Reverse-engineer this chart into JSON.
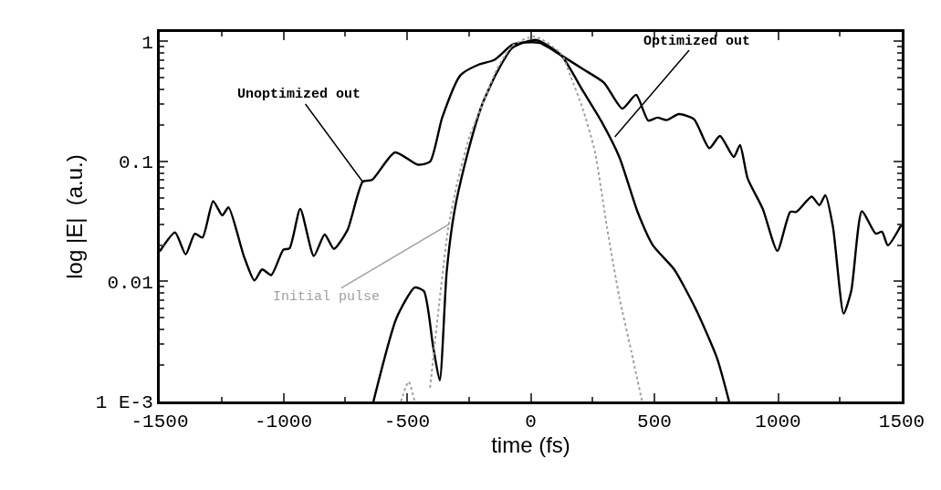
{
  "chart_data": {
    "type": "line",
    "xlabel": "time (fs)",
    "ylabel": "log |E|  (a.u.)",
    "log": "y",
    "xlim": [
      -1500,
      1500
    ],
    "xticks": [
      -1500,
      -1000,
      -500,
      0,
      500,
      1000,
      1500
    ],
    "ylim": [
      0.001,
      1.2
    ],
    "yticks": [
      {
        "value": 0.001,
        "label": "1 E-3"
      },
      0.01,
      0.1,
      1
    ],
    "series": [
      {
        "color": "#000000",
        "line_style": "solid",
        "x": [
          -1500,
          -1438,
          -1395,
          -1358,
          -1327,
          -1284,
          -1247,
          -1222,
          -1160,
          -1117,
          -1086,
          -1049,
          -1000,
          -975,
          -932,
          -877,
          -833,
          -796,
          -741,
          -679,
          -642,
          -549,
          -457,
          -407,
          -358,
          -284,
          -210,
          -148,
          -74,
          -25,
          37,
          123,
          210,
          296,
          370,
          426,
          475,
          512,
          549,
          599,
          660,
          722,
          765,
          821,
          846,
          877,
          938,
          997,
          1049,
          1074,
          1136,
          1167,
          1191,
          1222,
          1265,
          1296,
          1339,
          1395,
          1420,
          1444,
          1500
        ],
        "values": [
          0.0178,
          0.0256,
          0.0168,
          0.025,
          0.0232,
          0.0467,
          0.0355,
          0.0415,
          0.0163,
          0.0102,
          0.0126,
          0.0113,
          0.0184,
          0.0189,
          0.0403,
          0.0163,
          0.0246,
          0.0187,
          0.0268,
          0.068,
          0.07,
          0.119,
          0.094,
          0.0995,
          0.232,
          0.524,
          0.642,
          0.7,
          0.94,
          0.98,
          0.97,
          0.766,
          0.59,
          0.453,
          0.276,
          0.359,
          0.219,
          0.232,
          0.221,
          0.248,
          0.225,
          0.129,
          0.163,
          0.109,
          0.137,
          0.0722,
          0.0403,
          0.018,
          0.038,
          0.038,
          0.0509,
          0.0432,
          0.0524,
          0.0284,
          0.0054,
          0.0084,
          0.0385,
          0.025,
          0.026,
          0.02,
          0.0301
        ]
      },
      {
        "color": "#000000",
        "line_style": "solid",
        "x": [
          -636,
          -543,
          -469,
          -432,
          -395,
          -368,
          -340,
          -309,
          -259,
          -198,
          -136,
          -74,
          20,
          123,
          210,
          284,
          358,
          432,
          494,
          580,
          667,
          753,
          802
        ],
        "values": [
          0.001,
          0.00494,
          0.0089,
          0.0083,
          0.0029,
          0.0015,
          0.0119,
          0.038,
          0.109,
          0.292,
          0.555,
          0.885,
          1.03,
          0.766,
          0.39,
          0.219,
          0.109,
          0.038,
          0.02,
          0.0126,
          0.0059,
          0.0023,
          0.001
        ]
      },
      {
        "color": "#a0a0a0",
        "line_style": "dotted",
        "x": [
          -525,
          -494,
          -469,
          -440,
          -407,
          -370,
          -333,
          -296,
          -247,
          -198,
          -136,
          -74,
          15,
          123,
          160,
          210,
          259,
          308,
          358,
          407,
          450
        ],
        "values": [
          0.001,
          0.00146,
          0.001,
          null,
          0.0013,
          0.0066,
          0.0284,
          0.068,
          0.163,
          0.29,
          0.59,
          0.92,
          1.1,
          0.79,
          0.52,
          0.276,
          0.122,
          0.0284,
          0.0074,
          0.0026,
          0.001
        ]
      }
    ],
    "annotations": [
      {
        "text": "Unoptimized out",
        "x": -680,
        "y": 0.068
      },
      {
        "text": "Optimized out",
        "x": 340,
        "y": 0.16
      },
      {
        "text": "Initial pulse",
        "x": -330,
        "y": 0.03
      }
    ]
  }
}
